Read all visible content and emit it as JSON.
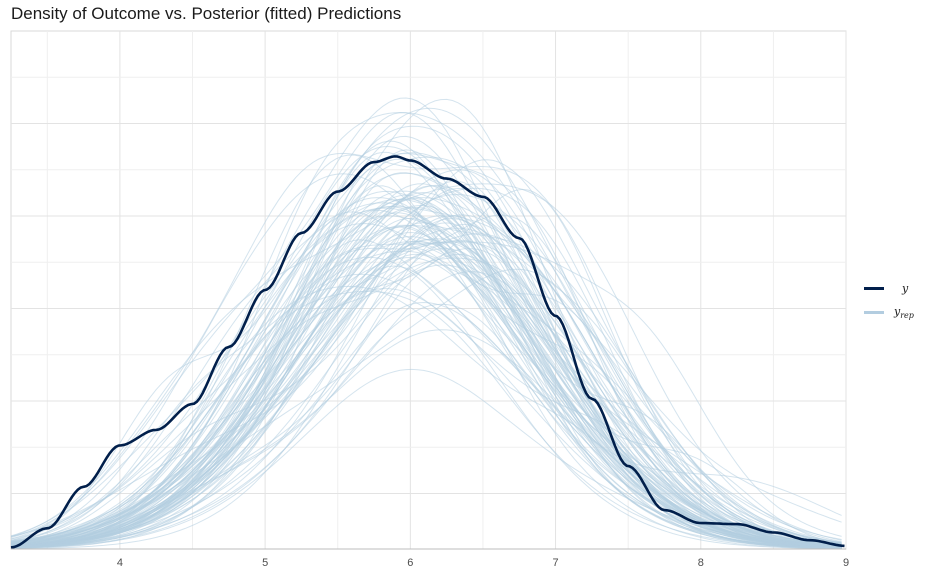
{
  "chart_data": {
    "type": "line",
    "title": "Density of Outcome vs. Posterior (fitted) Predictions",
    "xlabel": "",
    "ylabel": "",
    "xlim": [
      3.25,
      9.0
    ],
    "ylim": [
      0,
      1.0
    ],
    "x_ticks": [
      "4",
      "5",
      "6",
      "7",
      "8",
      "9"
    ],
    "grid": true,
    "legend_position": "right",
    "colors": {
      "y": "#011f4b",
      "yrep": "#b3cde0"
    },
    "series": [
      {
        "name": "y",
        "role": "observed",
        "x": [
          3.25,
          3.5,
          3.75,
          4.0,
          4.25,
          4.5,
          4.75,
          5.0,
          5.25,
          5.5,
          5.75,
          5.9,
          6.0,
          6.25,
          6.5,
          6.75,
          7.0,
          7.25,
          7.5,
          7.75,
          8.0,
          8.25,
          8.5,
          8.75,
          9.0
        ],
        "values": [
          0.003,
          0.04,
          0.12,
          0.2,
          0.23,
          0.28,
          0.39,
          0.5,
          0.61,
          0.69,
          0.747,
          0.758,
          0.75,
          0.715,
          0.68,
          0.6,
          0.45,
          0.29,
          0.16,
          0.075,
          0.05,
          0.048,
          0.032,
          0.017,
          0.006
        ]
      },
      {
        "name": "yrep",
        "role": "posterior predictive draws",
        "draw_count": 100
      }
    ]
  },
  "legend": {
    "y_symbol": "y",
    "yrep_symbol": "y",
    "yrep_subscript": "rep"
  }
}
